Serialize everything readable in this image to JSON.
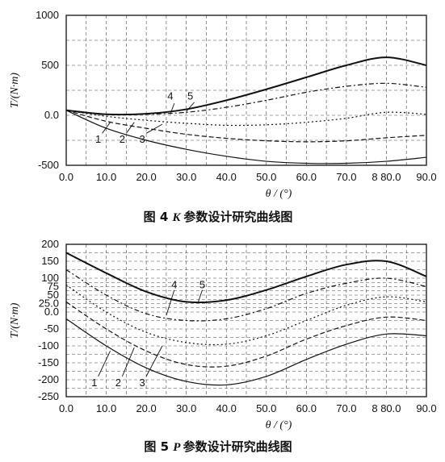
{
  "chart_data": [
    {
      "type": "line",
      "title": "K 参数设计研究曲线图",
      "caption_number": "图 4",
      "caption_param": "K",
      "caption_text": "参数设计研究曲线图",
      "xlabel": "θ / (°)",
      "ylabel": "T/(N·m)",
      "xlim": [
        0,
        90
      ],
      "ylim": [
        -500,
        1000
      ],
      "grid": true,
      "x_ticks": [
        "0.0",
        "10.0",
        "20.0",
        "30.0",
        "40.0",
        "50.0",
        "60.0",
        "70.0",
        "8 80.0",
        "90.0"
      ],
      "y_ticks": [
        "-500",
        "0.0",
        "500",
        "1000"
      ],
      "y_tick_values": [
        -500,
        0,
        500,
        1000
      ],
      "x": [
        0,
        10,
        20,
        30,
        40,
        50,
        60,
        70,
        80,
        90
      ],
      "series": [
        {
          "name": "1",
          "label_x": 8,
          "label_y": -240,
          "pointer_from": [
            9,
            -180
          ],
          "pointer_to": [
            11,
            -70
          ],
          "values": [
            50,
            -130,
            -250,
            -340,
            -410,
            -460,
            -480,
            -480,
            -460,
            -420
          ]
        },
        {
          "name": "2",
          "label_x": 14,
          "label_y": -240,
          "pointer_from": [
            15,
            -180
          ],
          "pointer_to": [
            17,
            -70
          ],
          "values": [
            50,
            -60,
            -130,
            -190,
            -230,
            -255,
            -265,
            -255,
            -225,
            -200
          ]
        },
        {
          "name": "3",
          "label_x": 19,
          "label_y": -240,
          "pointer_from": [
            20,
            -180
          ],
          "pointer_to": [
            24,
            -90
          ],
          "values": [
            50,
            -10,
            -50,
            -80,
            -100,
            -95,
            -70,
            -30,
            30,
            10
          ]
        },
        {
          "name": "4",
          "label_x": 26,
          "label_y": 190,
          "pointer_from": [
            27,
            120
          ],
          "pointer_to": [
            26,
            10
          ],
          "values": [
            50,
            10,
            10,
            30,
            80,
            150,
            230,
            290,
            320,
            280
          ]
        },
        {
          "name": "5",
          "label_x": 31,
          "label_y": 190,
          "pointer_from": [
            32,
            130
          ],
          "pointer_to": [
            30,
            40
          ],
          "values": [
            50,
            10,
            15,
            60,
            150,
            260,
            380,
            500,
            580,
            500
          ]
        }
      ]
    },
    {
      "type": "line",
      "title": "P 参数设计研究曲线图",
      "caption_number": "图 5",
      "caption_param": "P",
      "caption_text": "参数设计研究曲线图",
      "xlabel": "θ / (°)",
      "ylabel": "T/(N·m)",
      "xlim": [
        0,
        90
      ],
      "ylim": [
        -250,
        200
      ],
      "grid": true,
      "x_ticks": [
        "0.0",
        "10.0",
        "20.0",
        "30.0",
        "40.0",
        "50.0",
        "60.0",
        "70.0",
        "8 80.0",
        "90.0"
      ],
      "y_ticks": [
        "-250",
        "-200",
        "-150",
        "-100",
        "-50",
        "0.0",
        "25.0",
        "50",
        "75",
        "100",
        "150",
        "200"
      ],
      "y_tick_values": [
        -250,
        -200,
        -150,
        -100,
        -50,
        0,
        25,
        50,
        75,
        100,
        150,
        200
      ],
      "x": [
        0,
        10,
        20,
        30,
        40,
        50,
        60,
        70,
        80,
        90
      ],
      "series": [
        {
          "name": "1",
          "label_x": 7,
          "label_y": -210,
          "pointer_from": [
            8,
            -190
          ],
          "pointer_to": [
            11,
            -115
          ],
          "values": [
            -20,
            -100,
            -165,
            -205,
            -215,
            -190,
            -140,
            -95,
            -65,
            -70
          ]
        },
        {
          "name": "2",
          "label_x": 13,
          "label_y": -210,
          "pointer_from": [
            14,
            -190
          ],
          "pointer_to": [
            17,
            -105
          ],
          "values": [
            30,
            -50,
            -115,
            -155,
            -160,
            -130,
            -80,
            -40,
            -15,
            -25
          ]
        },
        {
          "name": "3",
          "label_x": 19,
          "label_y": -210,
          "pointer_from": [
            20,
            -190
          ],
          "pointer_to": [
            24,
            -100
          ],
          "values": [
            80,
            0,
            -60,
            -90,
            -95,
            -70,
            -25,
            20,
            45,
            30
          ]
        },
        {
          "name": "4",
          "label_x": 27,
          "label_y": 80,
          "pointer_from": [
            27,
            65
          ],
          "pointer_to": [
            25,
            -10
          ],
          "values": [
            125,
            50,
            -5,
            -25,
            -20,
            10,
            55,
            85,
            100,
            75
          ]
        },
        {
          "name": "5",
          "label_x": 34,
          "label_y": 80,
          "pointer_from": [
            34,
            65
          ],
          "pointer_to": [
            33,
            30
          ],
          "values": [
            175,
            115,
            60,
            30,
            35,
            65,
            105,
            140,
            150,
            105
          ]
        }
      ]
    }
  ]
}
